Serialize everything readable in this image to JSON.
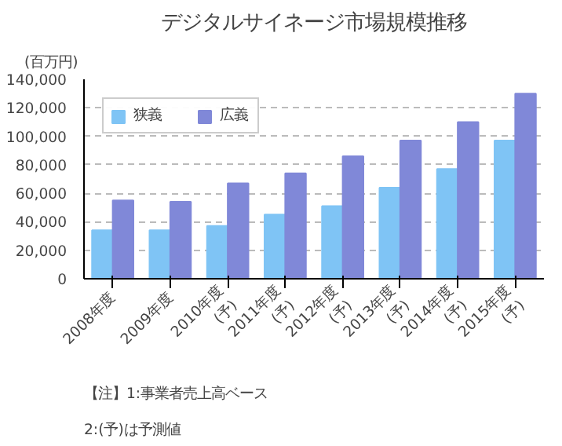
{
  "chart_data": {
    "type": "bar",
    "title": "デジタルサイネージ市場規模推移",
    "ylabel": "(百万円)",
    "categories": [
      "2008年度",
      "2009年度",
      "2010年度\n(予)",
      "2011年度\n(予)",
      "2012年度\n(予)",
      "2013年度\n(予)",
      "2014年度\n(予)",
      "2015年度\n(予)"
    ],
    "series": [
      {
        "name": "狭義",
        "color": "#7fc4f5",
        "values": [
          34000,
          34000,
          37000,
          45000,
          51000,
          64000,
          77000,
          97000
        ]
      },
      {
        "name": "広義",
        "color": "#8088d8",
        "values": [
          55000,
          54000,
          67000,
          74000,
          86000,
          97000,
          110000,
          130000
        ]
      }
    ],
    "ylim": [
      0,
      140000
    ],
    "yticks": [
      {
        "value": 0,
        "label": "0"
      },
      {
        "value": 20000,
        "label": "20,000"
      },
      {
        "value": 40000,
        "label": "40,000"
      },
      {
        "value": 60000,
        "label": "60,000"
      },
      {
        "value": 80000,
        "label": "80,000"
      },
      {
        "value": 100000,
        "label": "100,000"
      },
      {
        "value": 120000,
        "label": "120,000"
      },
      {
        "value": 140000,
        "label": "140,000"
      }
    ],
    "grid": "y",
    "legend": "top left",
    "annotations": [
      "【注】1:事業者売上高ベース",
      "2:(予)は予測値"
    ]
  }
}
